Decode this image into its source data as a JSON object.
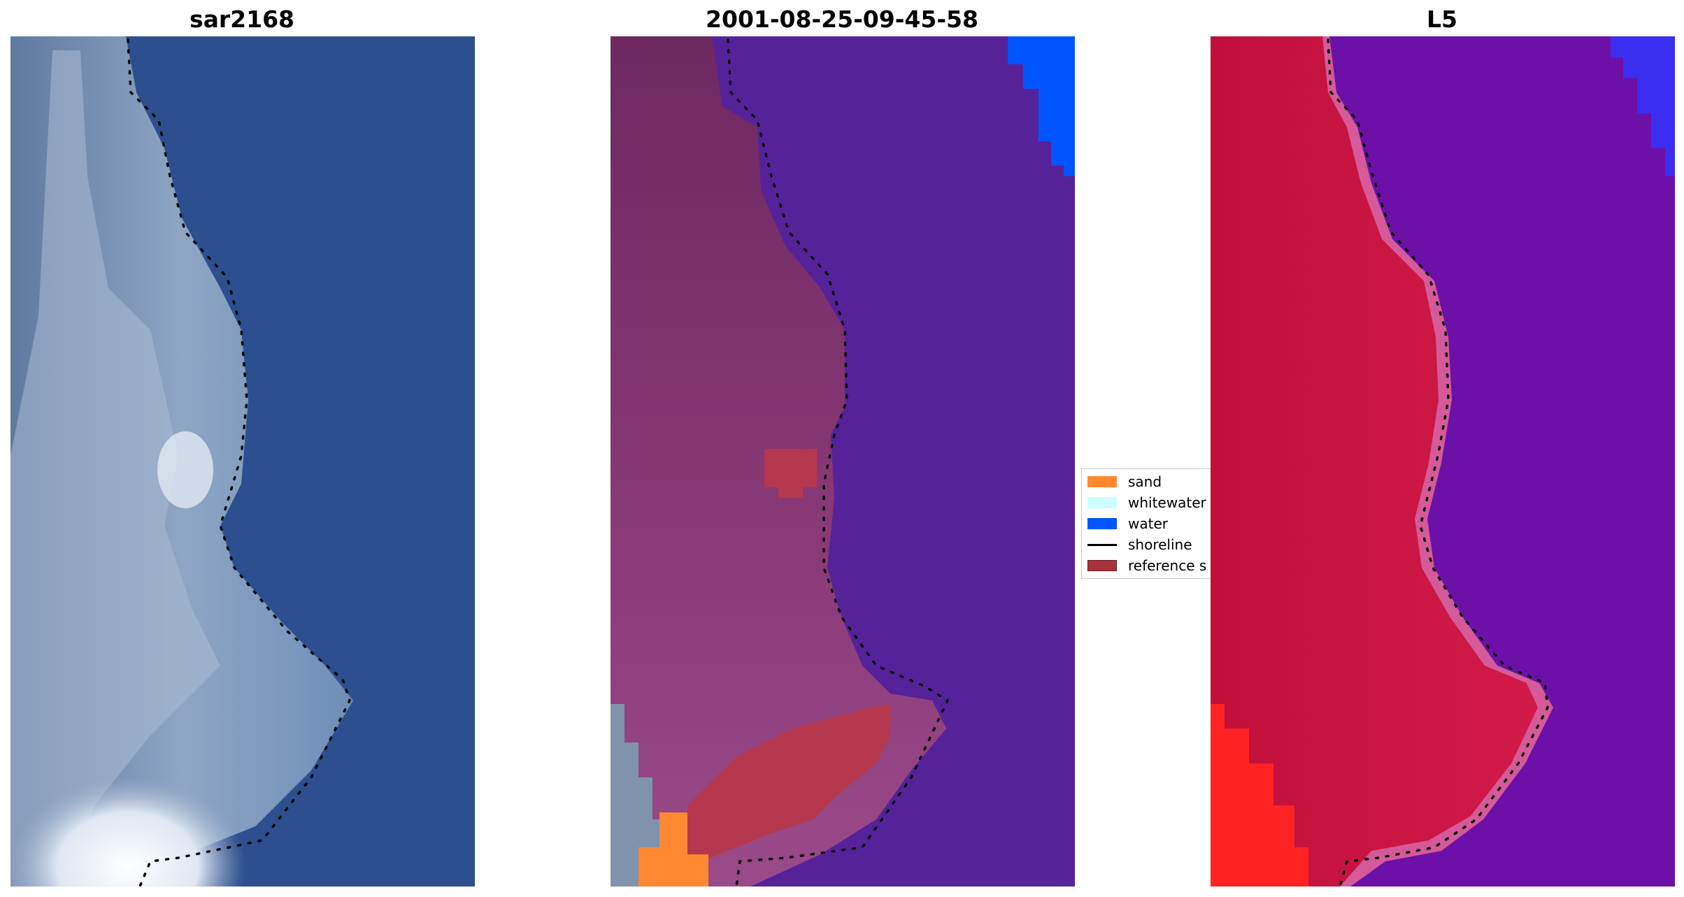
{
  "panels": {
    "left": {
      "title": "sar2168"
    },
    "middle": {
      "title": "2001-08-25-09-45-58"
    },
    "right": {
      "title": "L5"
    }
  },
  "legend": {
    "items": [
      {
        "label": "sand",
        "color": "#ff8833",
        "kind": "patch"
      },
      {
        "label": "whitewater",
        "color": "#ccffff",
        "kind": "patch"
      },
      {
        "label": "water",
        "color": "#0055ff",
        "kind": "patch"
      },
      {
        "label": "shoreline",
        "color": "#000000",
        "kind": "line"
      },
      {
        "label": "reference s",
        "color": "#a8323a",
        "kind": "patch"
      }
    ]
  },
  "colors": {
    "ocean_left": "#2d4f8f",
    "land_middle": "#7a3068",
    "water_middle": "#56229a",
    "land_right": "#c8123f",
    "water_right": "#6c10a8",
    "bright_red": "#ff2222"
  }
}
